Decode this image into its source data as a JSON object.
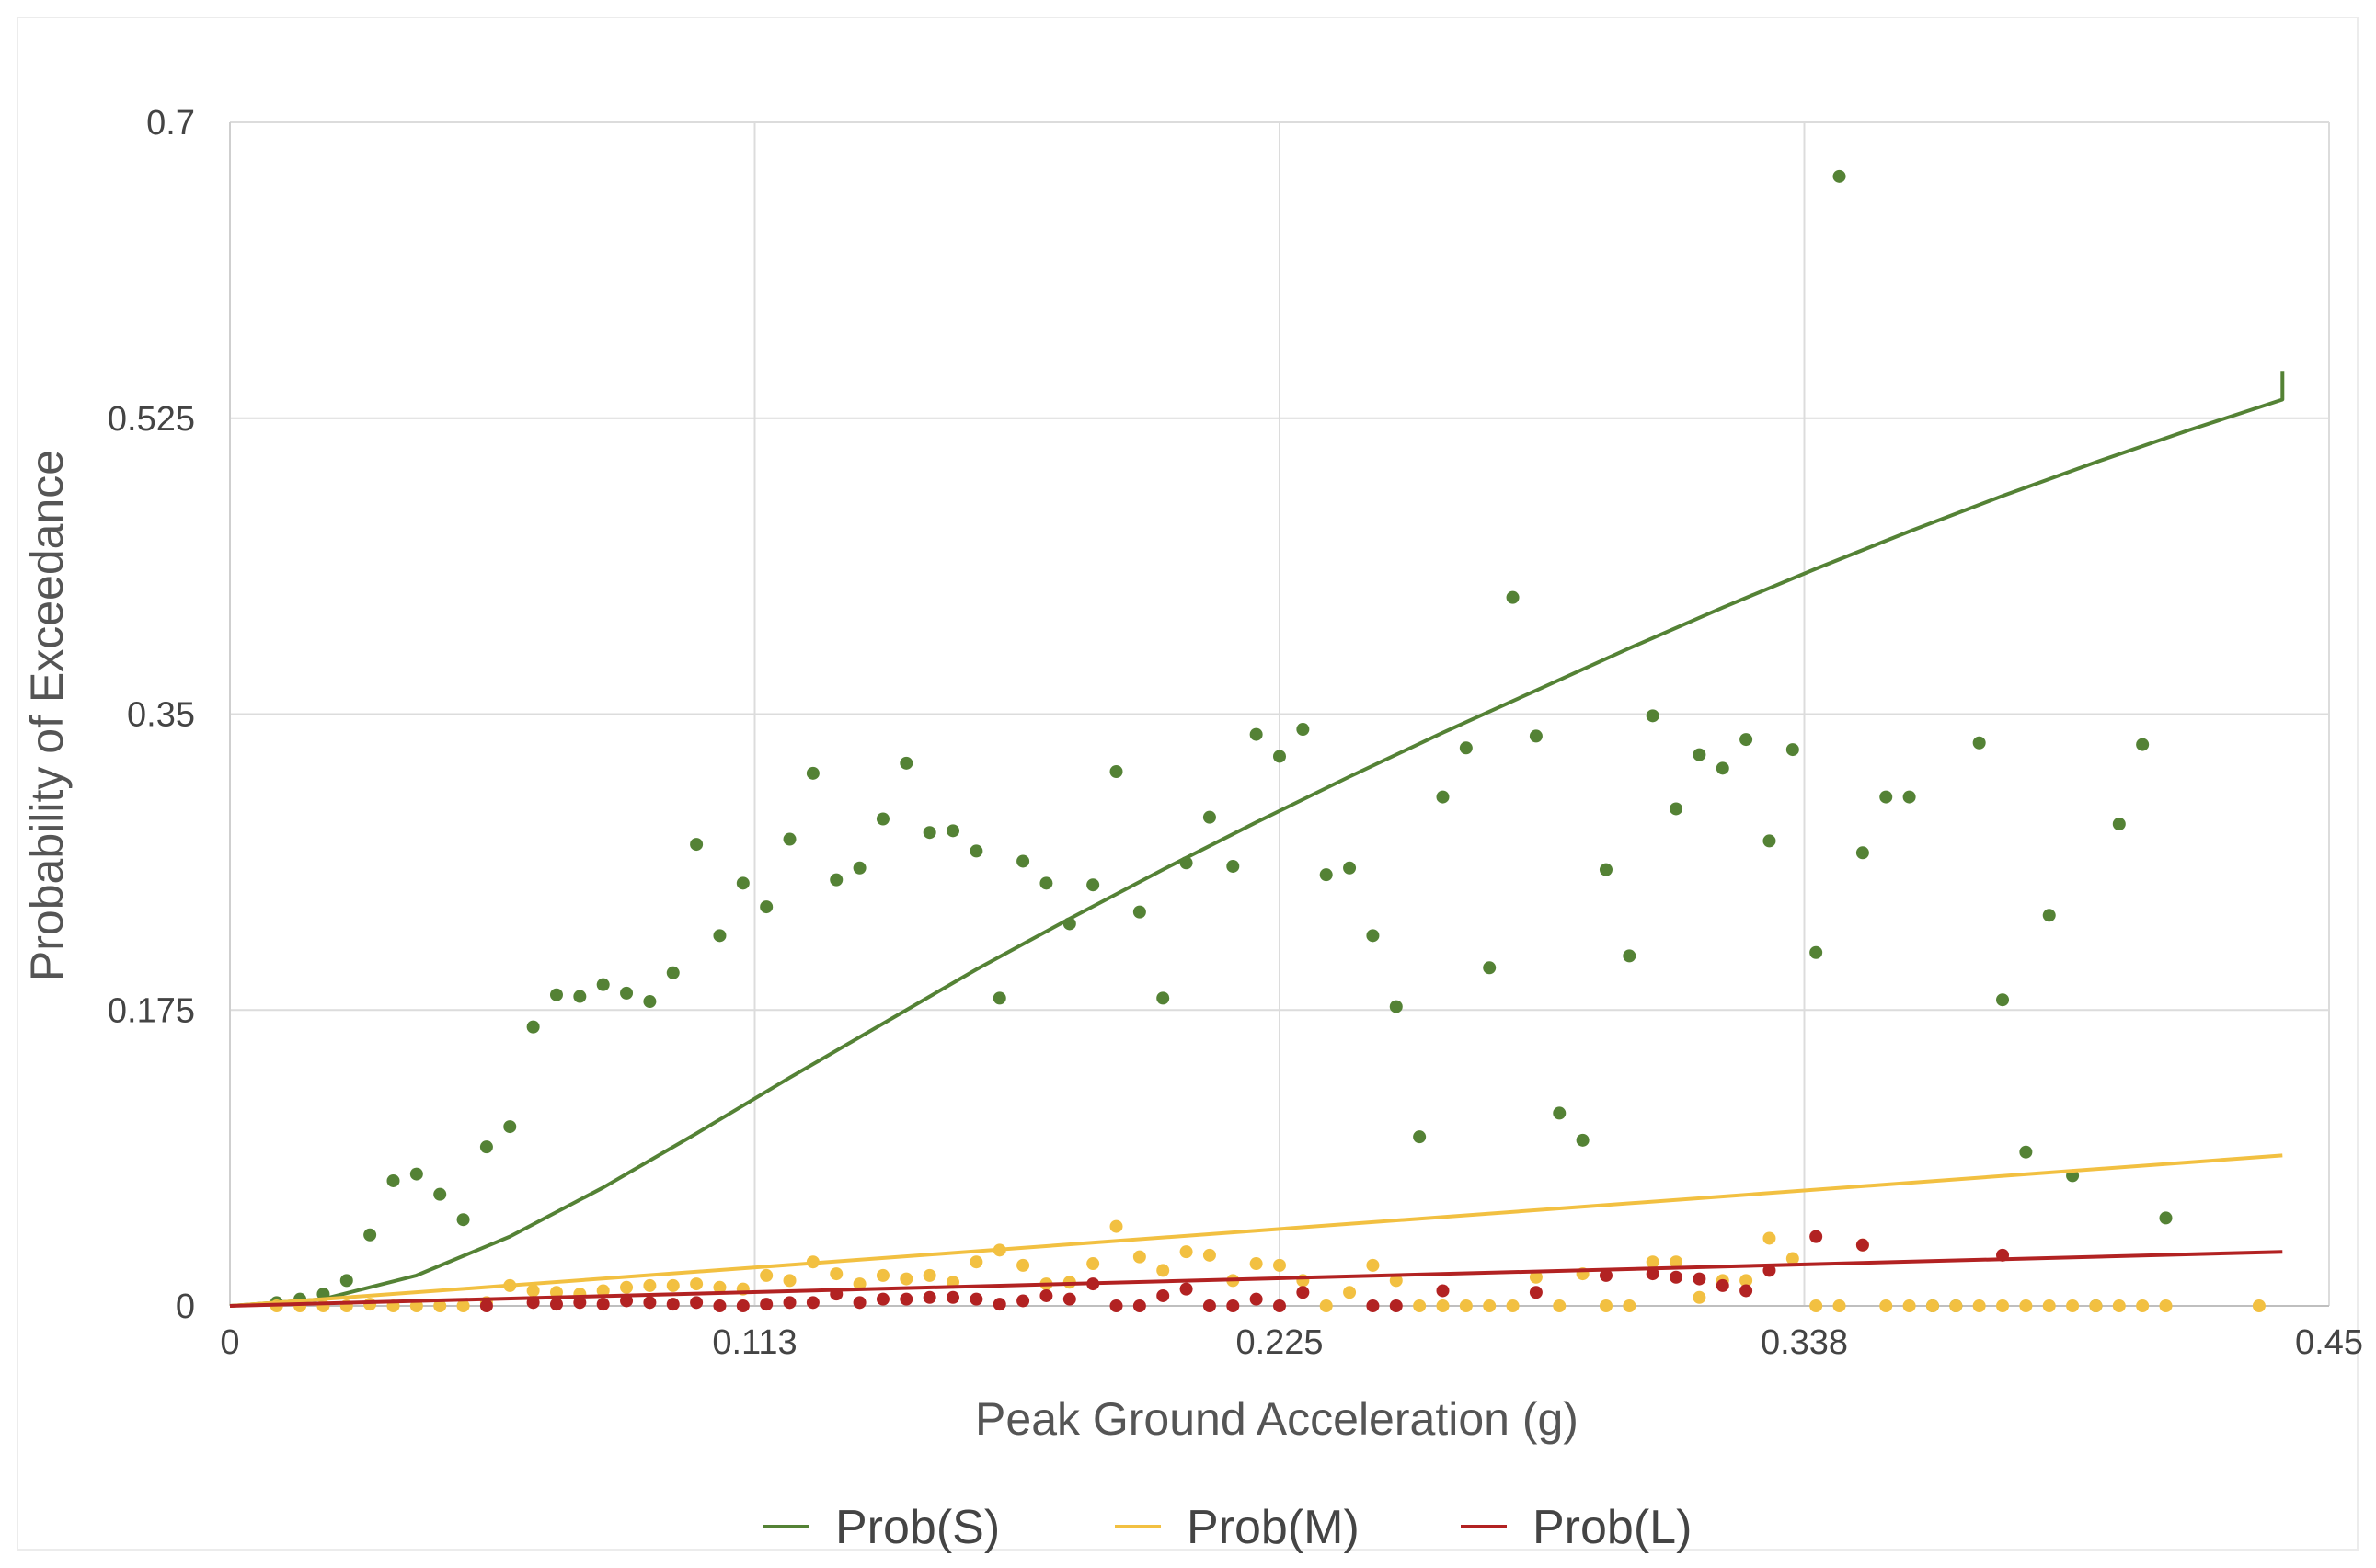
{
  "chart_data": {
    "type": "scatter",
    "title": "",
    "xlabel": "Peak Ground Acceleration (g)",
    "ylabel": "Probability of Exceedance",
    "xlim": [
      0,
      0.45
    ],
    "ylim": [
      0,
      0.7
    ],
    "x_ticks": [
      "0",
      "0.113",
      "0.225",
      "0.338",
      "0.45"
    ],
    "y_ticks": [
      "0",
      "0.175",
      "0.35",
      "0.525",
      "0.7"
    ],
    "grid": true,
    "legend_position": "bottom",
    "legend": [
      "Prob(S)",
      "Prob(M)",
      "Prob(L)"
    ],
    "series": [
      {
        "name": "Prob(S)",
        "color": "#548235",
        "points": [
          [
            0.01,
            0.002
          ],
          [
            0.015,
            0.004
          ],
          [
            0.02,
            0.007
          ],
          [
            0.025,
            0.015
          ],
          [
            0.03,
            0.042
          ],
          [
            0.035,
            0.074
          ],
          [
            0.04,
            0.078
          ],
          [
            0.045,
            0.066
          ],
          [
            0.05,
            0.051
          ],
          [
            0.055,
            0.094
          ],
          [
            0.06,
            0.106
          ],
          [
            0.065,
            0.165
          ],
          [
            0.07,
            0.184
          ],
          [
            0.075,
            0.183
          ],
          [
            0.08,
            0.19
          ],
          [
            0.085,
            0.185
          ],
          [
            0.09,
            0.18
          ],
          [
            0.095,
            0.197
          ],
          [
            0.1,
            0.273
          ],
          [
            0.105,
            0.219
          ],
          [
            0.11,
            0.25
          ],
          [
            0.115,
            0.236
          ],
          [
            0.12,
            0.276
          ],
          [
            0.125,
            0.315
          ],
          [
            0.13,
            0.252
          ],
          [
            0.135,
            0.259
          ],
          [
            0.14,
            0.288
          ],
          [
            0.145,
            0.321
          ],
          [
            0.15,
            0.28
          ],
          [
            0.155,
            0.281
          ],
          [
            0.16,
            0.269
          ],
          [
            0.165,
            0.182
          ],
          [
            0.17,
            0.263
          ],
          [
            0.175,
            0.25
          ],
          [
            0.18,
            0.226
          ],
          [
            0.185,
            0.249
          ],
          [
            0.19,
            0.316
          ],
          [
            0.195,
            0.233
          ],
          [
            0.2,
            0.182
          ],
          [
            0.205,
            0.262
          ],
          [
            0.21,
            0.289
          ],
          [
            0.215,
            0.26
          ],
          [
            0.22,
            0.338
          ],
          [
            0.225,
            0.325
          ],
          [
            0.23,
            0.341
          ],
          [
            0.235,
            0.255
          ],
          [
            0.24,
            0.259
          ],
          [
            0.245,
            0.219
          ],
          [
            0.25,
            0.177
          ],
          [
            0.255,
            0.1
          ],
          [
            0.26,
            0.301
          ],
          [
            0.265,
            0.33
          ],
          [
            0.27,
            0.2
          ],
          [
            0.275,
            0.419
          ],
          [
            0.28,
            0.337
          ],
          [
            0.285,
            0.114
          ],
          [
            0.29,
            0.098
          ],
          [
            0.295,
            0.258
          ],
          [
            0.3,
            0.207
          ],
          [
            0.305,
            0.349
          ],
          [
            0.31,
            0.294
          ],
          [
            0.315,
            0.326
          ],
          [
            0.32,
            0.318
          ],
          [
            0.325,
            0.335
          ],
          [
            0.33,
            0.275
          ],
          [
            0.335,
            0.329
          ],
          [
            0.34,
            0.209
          ],
          [
            0.345,
            0.668
          ],
          [
            0.35,
            0.268
          ],
          [
            0.355,
            0.301
          ],
          [
            0.36,
            0.301
          ],
          [
            0.365,
            0.0
          ],
          [
            0.37,
            0.0
          ],
          [
            0.375,
            0.333
          ],
          [
            0.38,
            0.181
          ],
          [
            0.385,
            0.091
          ],
          [
            0.39,
            0.231
          ],
          [
            0.395,
            0.077
          ],
          [
            0.4,
            0.0
          ],
          [
            0.405,
            0.285
          ],
          [
            0.41,
            0.332
          ],
          [
            0.415,
            0.052
          ]
        ],
        "fit_curve": [
          [
            0.0,
            0.0
          ],
          [
            0.02,
            0.004
          ],
          [
            0.04,
            0.018
          ],
          [
            0.06,
            0.041
          ],
          [
            0.08,
            0.07
          ],
          [
            0.1,
            0.102
          ],
          [
            0.12,
            0.135
          ],
          [
            0.14,
            0.167
          ],
          [
            0.16,
            0.199
          ],
          [
            0.18,
            0.229
          ],
          [
            0.2,
            0.258
          ],
          [
            0.22,
            0.286
          ],
          [
            0.24,
            0.313
          ],
          [
            0.26,
            0.339
          ],
          [
            0.28,
            0.364
          ],
          [
            0.3,
            0.389
          ],
          [
            0.32,
            0.413
          ],
          [
            0.34,
            0.436
          ],
          [
            0.36,
            0.458
          ],
          [
            0.38,
            0.479
          ],
          [
            0.4,
            0.499
          ],
          [
            0.42,
            0.518
          ],
          [
            0.44,
            0.536
          ],
          [
            0.44,
            0.553
          ]
        ]
      },
      {
        "name": "Prob(M)",
        "color": "#f2c041",
        "points": [
          [
            0.01,
            0.0
          ],
          [
            0.015,
            0.0
          ],
          [
            0.02,
            0.0
          ],
          [
            0.025,
            0.0
          ],
          [
            0.03,
            0.001
          ],
          [
            0.035,
            0.0
          ],
          [
            0.04,
            0.0
          ],
          [
            0.045,
            0.0
          ],
          [
            0.05,
            0.0
          ],
          [
            0.055,
            0.002
          ],
          [
            0.06,
            0.012
          ],
          [
            0.065,
            0.009
          ],
          [
            0.07,
            0.008
          ],
          [
            0.075,
            0.007
          ],
          [
            0.08,
            0.009
          ],
          [
            0.085,
            0.011
          ],
          [
            0.09,
            0.012
          ],
          [
            0.095,
            0.012
          ],
          [
            0.1,
            0.013
          ],
          [
            0.105,
            0.011
          ],
          [
            0.11,
            0.01
          ],
          [
            0.115,
            0.018
          ],
          [
            0.12,
            0.015
          ],
          [
            0.125,
            0.026
          ],
          [
            0.13,
            0.019
          ],
          [
            0.135,
            0.013
          ],
          [
            0.14,
            0.018
          ],
          [
            0.145,
            0.016
          ],
          [
            0.15,
            0.018
          ],
          [
            0.155,
            0.014
          ],
          [
            0.16,
            0.026
          ],
          [
            0.165,
            0.033
          ],
          [
            0.17,
            0.024
          ],
          [
            0.175,
            0.013
          ],
          [
            0.18,
            0.014
          ],
          [
            0.185,
            0.025
          ],
          [
            0.19,
            0.047
          ],
          [
            0.195,
            0.029
          ],
          [
            0.2,
            0.021
          ],
          [
            0.205,
            0.032
          ],
          [
            0.21,
            0.03
          ],
          [
            0.215,
            0.015
          ],
          [
            0.22,
            0.025
          ],
          [
            0.225,
            0.024
          ],
          [
            0.23,
            0.015
          ],
          [
            0.235,
            0.0
          ],
          [
            0.24,
            0.008
          ],
          [
            0.245,
            0.024
          ],
          [
            0.25,
            0.015
          ],
          [
            0.255,
            0.0
          ],
          [
            0.26,
            0.0
          ],
          [
            0.265,
            0.0
          ],
          [
            0.27,
            0.0
          ],
          [
            0.275,
            0.0
          ],
          [
            0.28,
            0.017
          ],
          [
            0.285,
            0.0
          ],
          [
            0.29,
            0.019
          ],
          [
            0.295,
            0.0
          ],
          [
            0.3,
            0.0
          ],
          [
            0.305,
            0.026
          ],
          [
            0.31,
            0.026
          ],
          [
            0.315,
            0.005
          ],
          [
            0.32,
            0.015
          ],
          [
            0.325,
            0.015
          ],
          [
            0.33,
            0.04
          ],
          [
            0.335,
            0.028
          ],
          [
            0.34,
            0.0
          ],
          [
            0.345,
            0.0
          ],
          [
            0.35,
            0.036
          ],
          [
            0.355,
            0.0
          ],
          [
            0.36,
            0.0
          ],
          [
            0.365,
            0.0
          ],
          [
            0.37,
            0.0
          ],
          [
            0.375,
            0.0
          ],
          [
            0.38,
            0.0
          ],
          [
            0.385,
            0.0
          ],
          [
            0.39,
            0.0
          ],
          [
            0.395,
            0.0
          ],
          [
            0.4,
            0.0
          ],
          [
            0.405,
            0.0
          ],
          [
            0.41,
            0.0
          ],
          [
            0.415,
            0.0
          ],
          [
            0.435,
            0.0
          ]
        ],
        "fit_curve": [
          [
            0.0,
            0.0
          ],
          [
            0.44,
            0.089
          ]
        ]
      },
      {
        "name": "Prob(L)",
        "color": "#b22222",
        "points": [
          [
            0.055,
            0.0
          ],
          [
            0.065,
            0.002
          ],
          [
            0.07,
            0.001
          ],
          [
            0.075,
            0.002
          ],
          [
            0.08,
            0.001
          ],
          [
            0.085,
            0.003
          ],
          [
            0.09,
            0.002
          ],
          [
            0.095,
            0.001
          ],
          [
            0.1,
            0.002
          ],
          [
            0.105,
            0.0
          ],
          [
            0.11,
            0.0
          ],
          [
            0.115,
            0.001
          ],
          [
            0.12,
            0.002
          ],
          [
            0.125,
            0.002
          ],
          [
            0.13,
            0.007
          ],
          [
            0.135,
            0.002
          ],
          [
            0.14,
            0.004
          ],
          [
            0.145,
            0.004
          ],
          [
            0.15,
            0.005
          ],
          [
            0.155,
            0.005
          ],
          [
            0.16,
            0.004
          ],
          [
            0.165,
            0.001
          ],
          [
            0.17,
            0.003
          ],
          [
            0.175,
            0.006
          ],
          [
            0.18,
            0.004
          ],
          [
            0.185,
            0.013
          ],
          [
            0.19,
            0.0
          ],
          [
            0.195,
            0.0
          ],
          [
            0.2,
            0.006
          ],
          [
            0.205,
            0.01
          ],
          [
            0.21,
            0.0
          ],
          [
            0.215,
            0.0
          ],
          [
            0.22,
            0.004
          ],
          [
            0.225,
            0.0
          ],
          [
            0.23,
            0.008
          ],
          [
            0.245,
            0.0
          ],
          [
            0.25,
            0.0
          ],
          [
            0.26,
            0.009
          ],
          [
            0.28,
            0.008
          ],
          [
            0.295,
            0.018
          ],
          [
            0.305,
            0.019
          ],
          [
            0.31,
            0.017
          ],
          [
            0.315,
            0.016
          ],
          [
            0.32,
            0.012
          ],
          [
            0.325,
            0.009
          ],
          [
            0.33,
            0.021
          ],
          [
            0.34,
            0.041
          ],
          [
            0.35,
            0.036
          ],
          [
            0.38,
            0.03
          ]
        ],
        "fit_curve": [
          [
            0.0,
            0.0
          ],
          [
            0.44,
            0.032
          ]
        ]
      }
    ]
  }
}
